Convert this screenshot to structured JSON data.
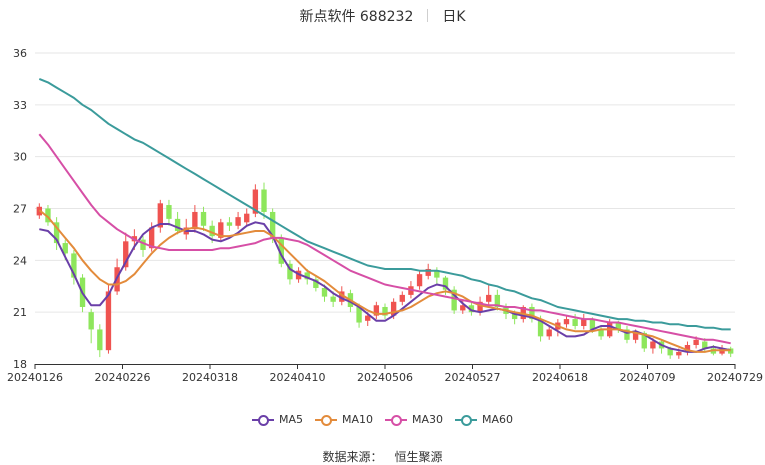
{
  "title": {
    "name": "新点软件 688232",
    "period": "日K"
  },
  "source": {
    "label": "数据来源：",
    "value": "恒生聚源"
  },
  "colors": {
    "up": "#ef5350",
    "down": "#8ee65c",
    "grid": "#e6e6e6",
    "axis": "#333333"
  },
  "chart_data": {
    "type": "candlestick",
    "title": "新点软件 688232 日K",
    "ylim": [
      18,
      36
    ],
    "yticks": [
      18,
      21,
      24,
      27,
      30,
      33,
      36
    ],
    "xticks": [
      "20240126",
      "20240226",
      "20240318",
      "20240410",
      "20240506",
      "20240527",
      "20240618",
      "20240709",
      "20240729"
    ],
    "grid": "horizontal",
    "legend_position": "bottom-center",
    "series": [
      {
        "name": "MA5",
        "color": "#6a3fa8",
        "values": [
          25.8,
          25.7,
          25.2,
          24.2,
          23.2,
          22.1,
          21.4,
          21.4,
          22.0,
          23.0,
          23.9,
          24.8,
          25.5,
          25.9,
          26.1,
          26.1,
          25.9,
          25.7,
          25.7,
          25.5,
          25.2,
          25.1,
          25.3,
          25.6,
          26.0,
          26.2,
          26.1,
          25.4,
          24.3,
          23.5,
          23.2,
          23.0,
          22.8,
          22.5,
          22.1,
          21.8,
          21.6,
          21.3,
          20.9,
          20.5,
          20.5,
          20.8,
          21.2,
          21.6,
          22.0,
          22.4,
          22.6,
          22.5,
          22.0,
          21.5,
          21.1,
          21.0,
          21.1,
          21.2,
          21.1,
          20.9,
          20.8,
          20.7,
          20.5,
          20.2,
          19.9,
          19.6,
          19.6,
          19.7,
          20.0,
          20.2,
          20.2,
          20.0,
          19.8,
          19.9,
          19.7,
          19.4,
          19.1,
          18.9,
          18.8,
          18.7,
          18.7,
          18.9,
          19.0,
          18.9,
          18.8
        ]
      },
      {
        "name": "MA10",
        "color": "#e38b3b",
        "values": [
          26.9,
          26.5,
          25.9,
          25.3,
          24.7,
          24.0,
          23.4,
          22.9,
          22.6,
          22.6,
          22.8,
          23.2,
          23.8,
          24.4,
          24.9,
          25.3,
          25.6,
          25.8,
          25.9,
          25.8,
          25.6,
          25.4,
          25.4,
          25.5,
          25.6,
          25.7,
          25.7,
          25.4,
          24.9,
          24.4,
          23.9,
          23.4,
          23.1,
          22.8,
          22.4,
          22.0,
          21.7,
          21.4,
          21.1,
          20.9,
          20.9,
          21.0,
          21.1,
          21.3,
          21.6,
          21.9,
          22.1,
          22.2,
          22.1,
          21.9,
          21.6,
          21.4,
          21.3,
          21.2,
          21.1,
          21.0,
          20.9,
          20.8,
          20.6,
          20.4,
          20.2,
          20.0,
          19.9,
          19.9,
          19.9,
          20.0,
          20.0,
          20.0,
          19.9,
          19.8,
          19.7,
          19.6,
          19.4,
          19.2,
          19.0,
          18.8,
          18.7,
          18.7,
          18.8,
          18.8,
          18.8
        ]
      },
      {
        "name": "MA30",
        "color": "#d64fa6",
        "values": [
          31.3,
          30.7,
          30.0,
          29.3,
          28.6,
          27.9,
          27.2,
          26.6,
          26.2,
          25.8,
          25.5,
          25.2,
          25.0,
          24.8,
          24.7,
          24.6,
          24.6,
          24.6,
          24.6,
          24.6,
          24.6,
          24.7,
          24.7,
          24.8,
          24.9,
          25.0,
          25.2,
          25.3,
          25.3,
          25.2,
          25.1,
          24.9,
          24.6,
          24.3,
          24.0,
          23.7,
          23.4,
          23.2,
          23.0,
          22.8,
          22.6,
          22.5,
          22.4,
          22.3,
          22.2,
          22.1,
          22.0,
          21.9,
          21.8,
          21.7,
          21.6,
          21.5,
          21.4,
          21.4,
          21.3,
          21.3,
          21.2,
          21.1,
          21.1,
          21.0,
          20.9,
          20.8,
          20.7,
          20.6,
          20.6,
          20.5,
          20.4,
          20.4,
          20.3,
          20.2,
          20.1,
          20.0,
          19.9,
          19.8,
          19.7,
          19.6,
          19.5,
          19.4,
          19.4,
          19.3,
          19.2
        ]
      },
      {
        "name": "MA60",
        "color": "#3b9b9b",
        "values": [
          34.5,
          34.3,
          34.0,
          33.7,
          33.4,
          33.0,
          32.7,
          32.3,
          31.9,
          31.6,
          31.3,
          31.0,
          30.8,
          30.5,
          30.2,
          29.9,
          29.6,
          29.3,
          29.0,
          28.7,
          28.4,
          28.1,
          27.8,
          27.5,
          27.2,
          26.9,
          26.6,
          26.3,
          26.0,
          25.7,
          25.4,
          25.1,
          24.9,
          24.7,
          24.5,
          24.3,
          24.1,
          23.9,
          23.7,
          23.6,
          23.5,
          23.5,
          23.5,
          23.5,
          23.4,
          23.4,
          23.4,
          23.3,
          23.2,
          23.1,
          22.9,
          22.8,
          22.6,
          22.5,
          22.3,
          22.2,
          22.0,
          21.8,
          21.7,
          21.5,
          21.3,
          21.2,
          21.1,
          21.0,
          20.9,
          20.8,
          20.7,
          20.6,
          20.6,
          20.5,
          20.5,
          20.4,
          20.4,
          20.3,
          20.3,
          20.2,
          20.2,
          20.1,
          20.1,
          20.0,
          20.0
        ]
      }
    ],
    "candles": [
      [
        26.6,
        27.1,
        27.3,
        26.4
      ],
      [
        27.0,
        26.2,
        27.2,
        26.0
      ],
      [
        26.2,
        25.0,
        26.5,
        24.6
      ],
      [
        25.0,
        24.4,
        25.2,
        24.0
      ],
      [
        24.4,
        23.0,
        24.6,
        22.6
      ],
      [
        23.0,
        21.3,
        23.2,
        21.0
      ],
      [
        21.0,
        20.0,
        21.2,
        19.2
      ],
      [
        20.0,
        18.8,
        20.3,
        18.4
      ],
      [
        18.8,
        22.2,
        22.6,
        18.6
      ],
      [
        22.2,
        23.6,
        24.1,
        22.0
      ],
      [
        23.6,
        25.1,
        25.6,
        23.4
      ],
      [
        25.1,
        25.4,
        25.8,
        24.6
      ],
      [
        25.2,
        24.6,
        25.4,
        24.2
      ],
      [
        24.7,
        25.9,
        26.2,
        24.5
      ],
      [
        25.9,
        27.3,
        27.5,
        25.6
      ],
      [
        27.2,
        26.4,
        27.5,
        26.0
      ],
      [
        26.4,
        25.7,
        26.8,
        25.5
      ],
      [
        25.5,
        25.9,
        26.4,
        25.2
      ],
      [
        25.8,
        26.8,
        27.2,
        25.6
      ],
      [
        26.8,
        26.0,
        27.1,
        25.7
      ],
      [
        26.0,
        25.4,
        26.3,
        25.0
      ],
      [
        25.3,
        26.2,
        26.4,
        25.1
      ],
      [
        26.2,
        26.0,
        26.5,
        25.7
      ],
      [
        26.0,
        26.5,
        26.8,
        25.8
      ],
      [
        26.2,
        26.7,
        27.0,
        26.0
      ],
      [
        26.7,
        28.1,
        28.4,
        26.5
      ],
      [
        28.1,
        26.8,
        28.5,
        26.4
      ],
      [
        26.8,
        25.3,
        27.0,
        25.0
      ],
      [
        25.3,
        23.8,
        25.5,
        23.6
      ],
      [
        23.8,
        22.9,
        24.0,
        22.6
      ],
      [
        22.9,
        23.4,
        23.6,
        22.7
      ],
      [
        23.3,
        22.9,
        23.5,
        22.6
      ],
      [
        22.9,
        22.4,
        23.1,
        22.2
      ],
      [
        22.4,
        21.9,
        22.6,
        21.6
      ],
      [
        21.9,
        21.6,
        22.2,
        21.3
      ],
      [
        21.6,
        22.2,
        22.5,
        21.4
      ],
      [
        22.1,
        21.3,
        22.3,
        21.0
      ],
      [
        21.3,
        20.4,
        21.5,
        20.1
      ],
      [
        20.5,
        20.8,
        21.0,
        20.2
      ],
      [
        20.8,
        21.4,
        21.6,
        20.6
      ],
      [
        21.3,
        20.8,
        21.5,
        20.6
      ],
      [
        20.8,
        21.6,
        21.8,
        20.6
      ],
      [
        21.6,
        22.0,
        22.2,
        21.4
      ],
      [
        22.0,
        22.5,
        22.8,
        21.8
      ],
      [
        22.5,
        23.2,
        23.4,
        22.3
      ],
      [
        23.1,
        23.5,
        23.8,
        22.9
      ],
      [
        23.4,
        23.0,
        23.6,
        22.6
      ],
      [
        23.0,
        22.3,
        23.1,
        22.0
      ],
      [
        22.3,
        21.1,
        22.5,
        20.9
      ],
      [
        21.1,
        21.4,
        21.7,
        20.9
      ],
      [
        21.4,
        21.0,
        21.6,
        20.8
      ],
      [
        21.0,
        21.6,
        21.9,
        20.8
      ],
      [
        21.6,
        22.0,
        22.6,
        21.4
      ],
      [
        22.0,
        21.3,
        22.3,
        21.1
      ],
      [
        21.3,
        20.9,
        21.5,
        20.6
      ],
      [
        20.9,
        20.6,
        21.1,
        20.3
      ],
      [
        20.6,
        21.3,
        21.4,
        20.4
      ],
      [
        21.3,
        20.6,
        21.5,
        20.4
      ],
      [
        20.6,
        19.6,
        20.8,
        19.3
      ],
      [
        19.6,
        20.0,
        20.2,
        19.4
      ],
      [
        20.0,
        20.4,
        20.6,
        19.6
      ],
      [
        20.3,
        20.6,
        20.8,
        20.1
      ],
      [
        20.6,
        20.2,
        20.9,
        20.0
      ],
      [
        20.2,
        20.6,
        20.9,
        20.0
      ],
      [
        20.6,
        20.0,
        20.7,
        19.8
      ],
      [
        20.0,
        19.6,
        20.2,
        19.4
      ],
      [
        19.6,
        20.4,
        20.6,
        19.5
      ],
      [
        20.4,
        20.0,
        20.5,
        19.8
      ],
      [
        20.0,
        19.4,
        20.2,
        19.2
      ],
      [
        19.4,
        19.8,
        20.0,
        19.2
      ],
      [
        19.8,
        18.9,
        19.9,
        18.7
      ],
      [
        18.9,
        19.3,
        19.5,
        18.6
      ],
      [
        19.3,
        18.9,
        19.4,
        18.6
      ],
      [
        18.9,
        18.5,
        19.0,
        18.3
      ],
      [
        18.5,
        18.7,
        18.9,
        18.3
      ],
      [
        18.7,
        19.1,
        19.3,
        18.5
      ],
      [
        19.1,
        19.4,
        19.6,
        18.9
      ],
      [
        19.3,
        18.9,
        19.5,
        18.7
      ],
      [
        18.9,
        18.6,
        19.1,
        18.5
      ],
      [
        18.6,
        18.9,
        19.1,
        18.5
      ],
      [
        18.9,
        18.6,
        19.0,
        18.4
      ]
    ]
  }
}
